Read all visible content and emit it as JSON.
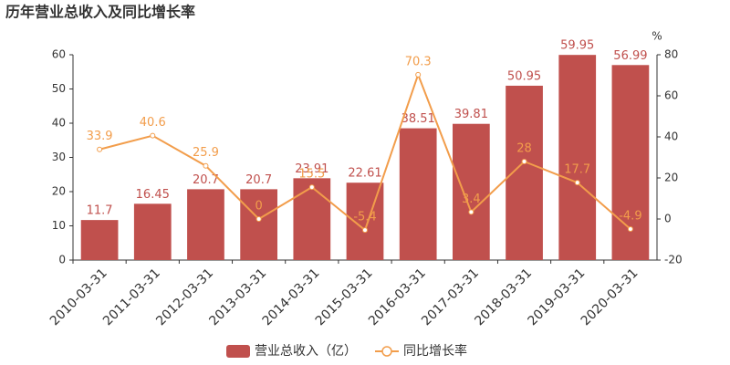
{
  "chart_data": {
    "type": "bar",
    "title": "历年营业总收入及同比增长率",
    "categories": [
      "2010-03-31",
      "2011-03-31",
      "2012-03-31",
      "2013-03-31",
      "2014-03-31",
      "2015-03-31",
      "2016-03-31",
      "2017-03-31",
      "2018-03-31",
      "2019-03-31",
      "2020-03-31"
    ],
    "series": [
      {
        "name": "营业总收入（亿）",
        "type": "bar",
        "color": "#c0504d",
        "values": [
          11.7,
          16.45,
          20.7,
          20.7,
          23.91,
          22.61,
          38.51,
          39.81,
          50.95,
          59.95,
          56.99
        ]
      },
      {
        "name": "同比增长率",
        "type": "line",
        "axis": "y2",
        "color": "#f29d4b",
        "values": [
          33.9,
          40.6,
          25.9,
          0,
          15.5,
          -5.4,
          70.3,
          3.4,
          28,
          17.7,
          -4.9
        ]
      }
    ],
    "ylim": [
      0,
      60
    ],
    "yticks": [
      0,
      10,
      20,
      30,
      40,
      50,
      60
    ],
    "y2lim": [
      -20,
      80
    ],
    "y2ticks": [
      -20,
      0,
      20,
      40,
      60,
      80
    ],
    "y2label": "%",
    "grid": false,
    "legend": "bottom"
  }
}
